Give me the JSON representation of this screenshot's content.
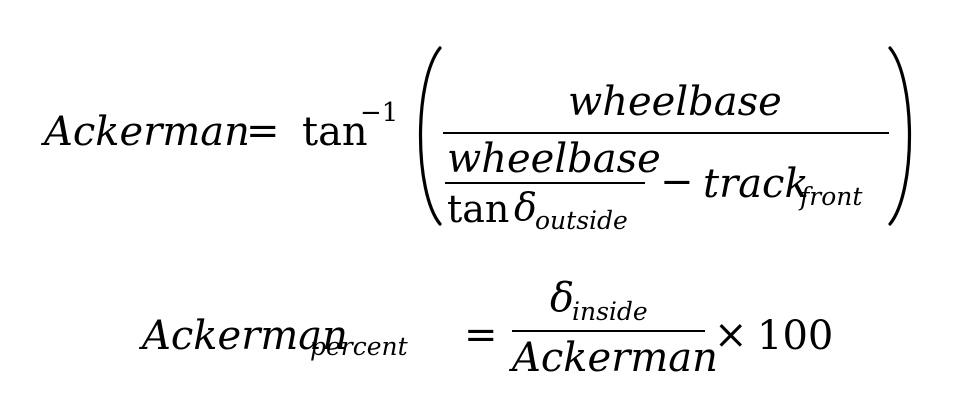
{
  "equation1": {
    "lhs": "Ackerman",
    "equals": "=",
    "func": "tan",
    "inverse_sup": "−1",
    "numerator": "wheelbase",
    "inner_numerator": "wheelbase",
    "inner_denominator_func": "tan",
    "inner_denominator_symbol": "δ",
    "inner_denominator_sub": "outside",
    "minus": "−",
    "track": "track",
    "track_sub": "front"
  },
  "equation2": {
    "lhs": "Ackerman",
    "lhs_sub": "percent",
    "equals": "=",
    "numerator_symbol": "δ",
    "numerator_sub": "inside",
    "denominator": "Ackerman",
    "times": "×",
    "factor": "100"
  }
}
